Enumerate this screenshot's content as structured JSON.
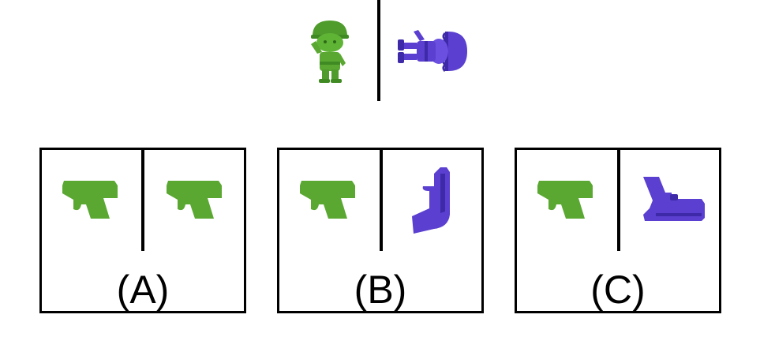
{
  "colors": {
    "green": "#5aa832",
    "green_dark": "#3f8a22",
    "purple": "#5b3fd0",
    "purple_dark": "#3e2aa8",
    "line": "#000000"
  },
  "reference": {
    "left_figure": "green-soldier-upright",
    "right_figure": "purple-soldier-rotated-90"
  },
  "options": [
    {
      "label": "(A)",
      "left_icon": "green-pistol-upright",
      "right_icon": "green-pistol-upright"
    },
    {
      "label": "(B)",
      "left_icon": "green-pistol-upright",
      "right_icon": "purple-pistol-rotated"
    },
    {
      "label": "(C)",
      "left_icon": "green-pistol-upright",
      "right_icon": "purple-pistol-flipped"
    }
  ]
}
